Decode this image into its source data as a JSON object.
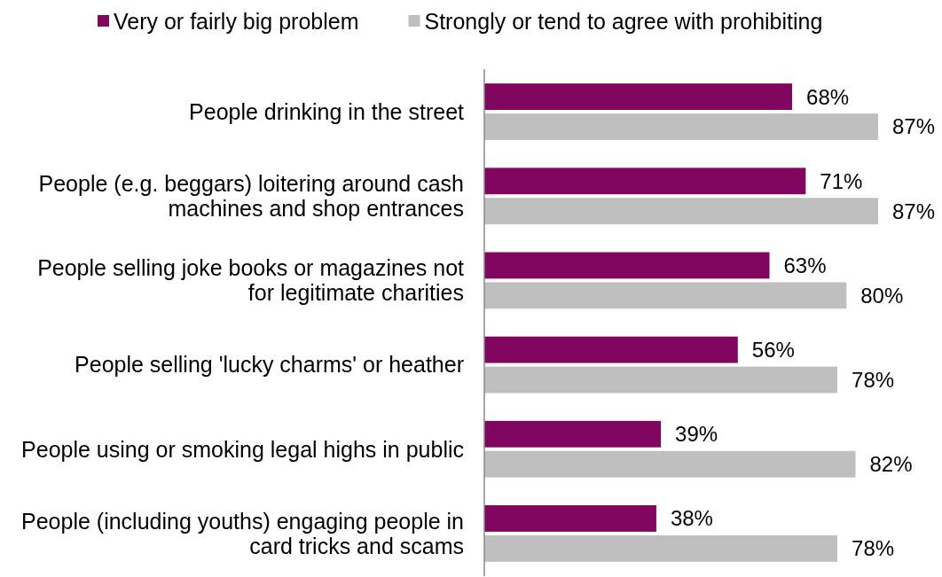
{
  "chart_data": {
    "type": "bar",
    "orientation": "horizontal",
    "categories": [
      "People drinking in the street",
      "People (e.g. beggars) loitering around cash machines and shop entrances",
      "People selling joke books or magazines not for legitimate charities",
      "People selling 'lucky charms' or heather",
      "People using or smoking legal highs in public",
      "People (including youths) engaging people in card tricks and scams"
    ],
    "series": [
      {
        "name": "Very or fairly big problem",
        "color": "#80065f",
        "values": [
          68,
          71,
          63,
          56,
          39,
          38
        ],
        "value_labels": [
          "68%",
          "71%",
          "63%",
          "56%",
          "39%",
          "38%"
        ]
      },
      {
        "name": "Strongly or tend to agree with prohibiting",
        "color": "#bfbfbf",
        "values": [
          87,
          87,
          80,
          78,
          82,
          78
        ],
        "value_labels": [
          "87%",
          "87%",
          "80%",
          "78%",
          "82%",
          "78%"
        ]
      }
    ],
    "legend": "top"
  }
}
